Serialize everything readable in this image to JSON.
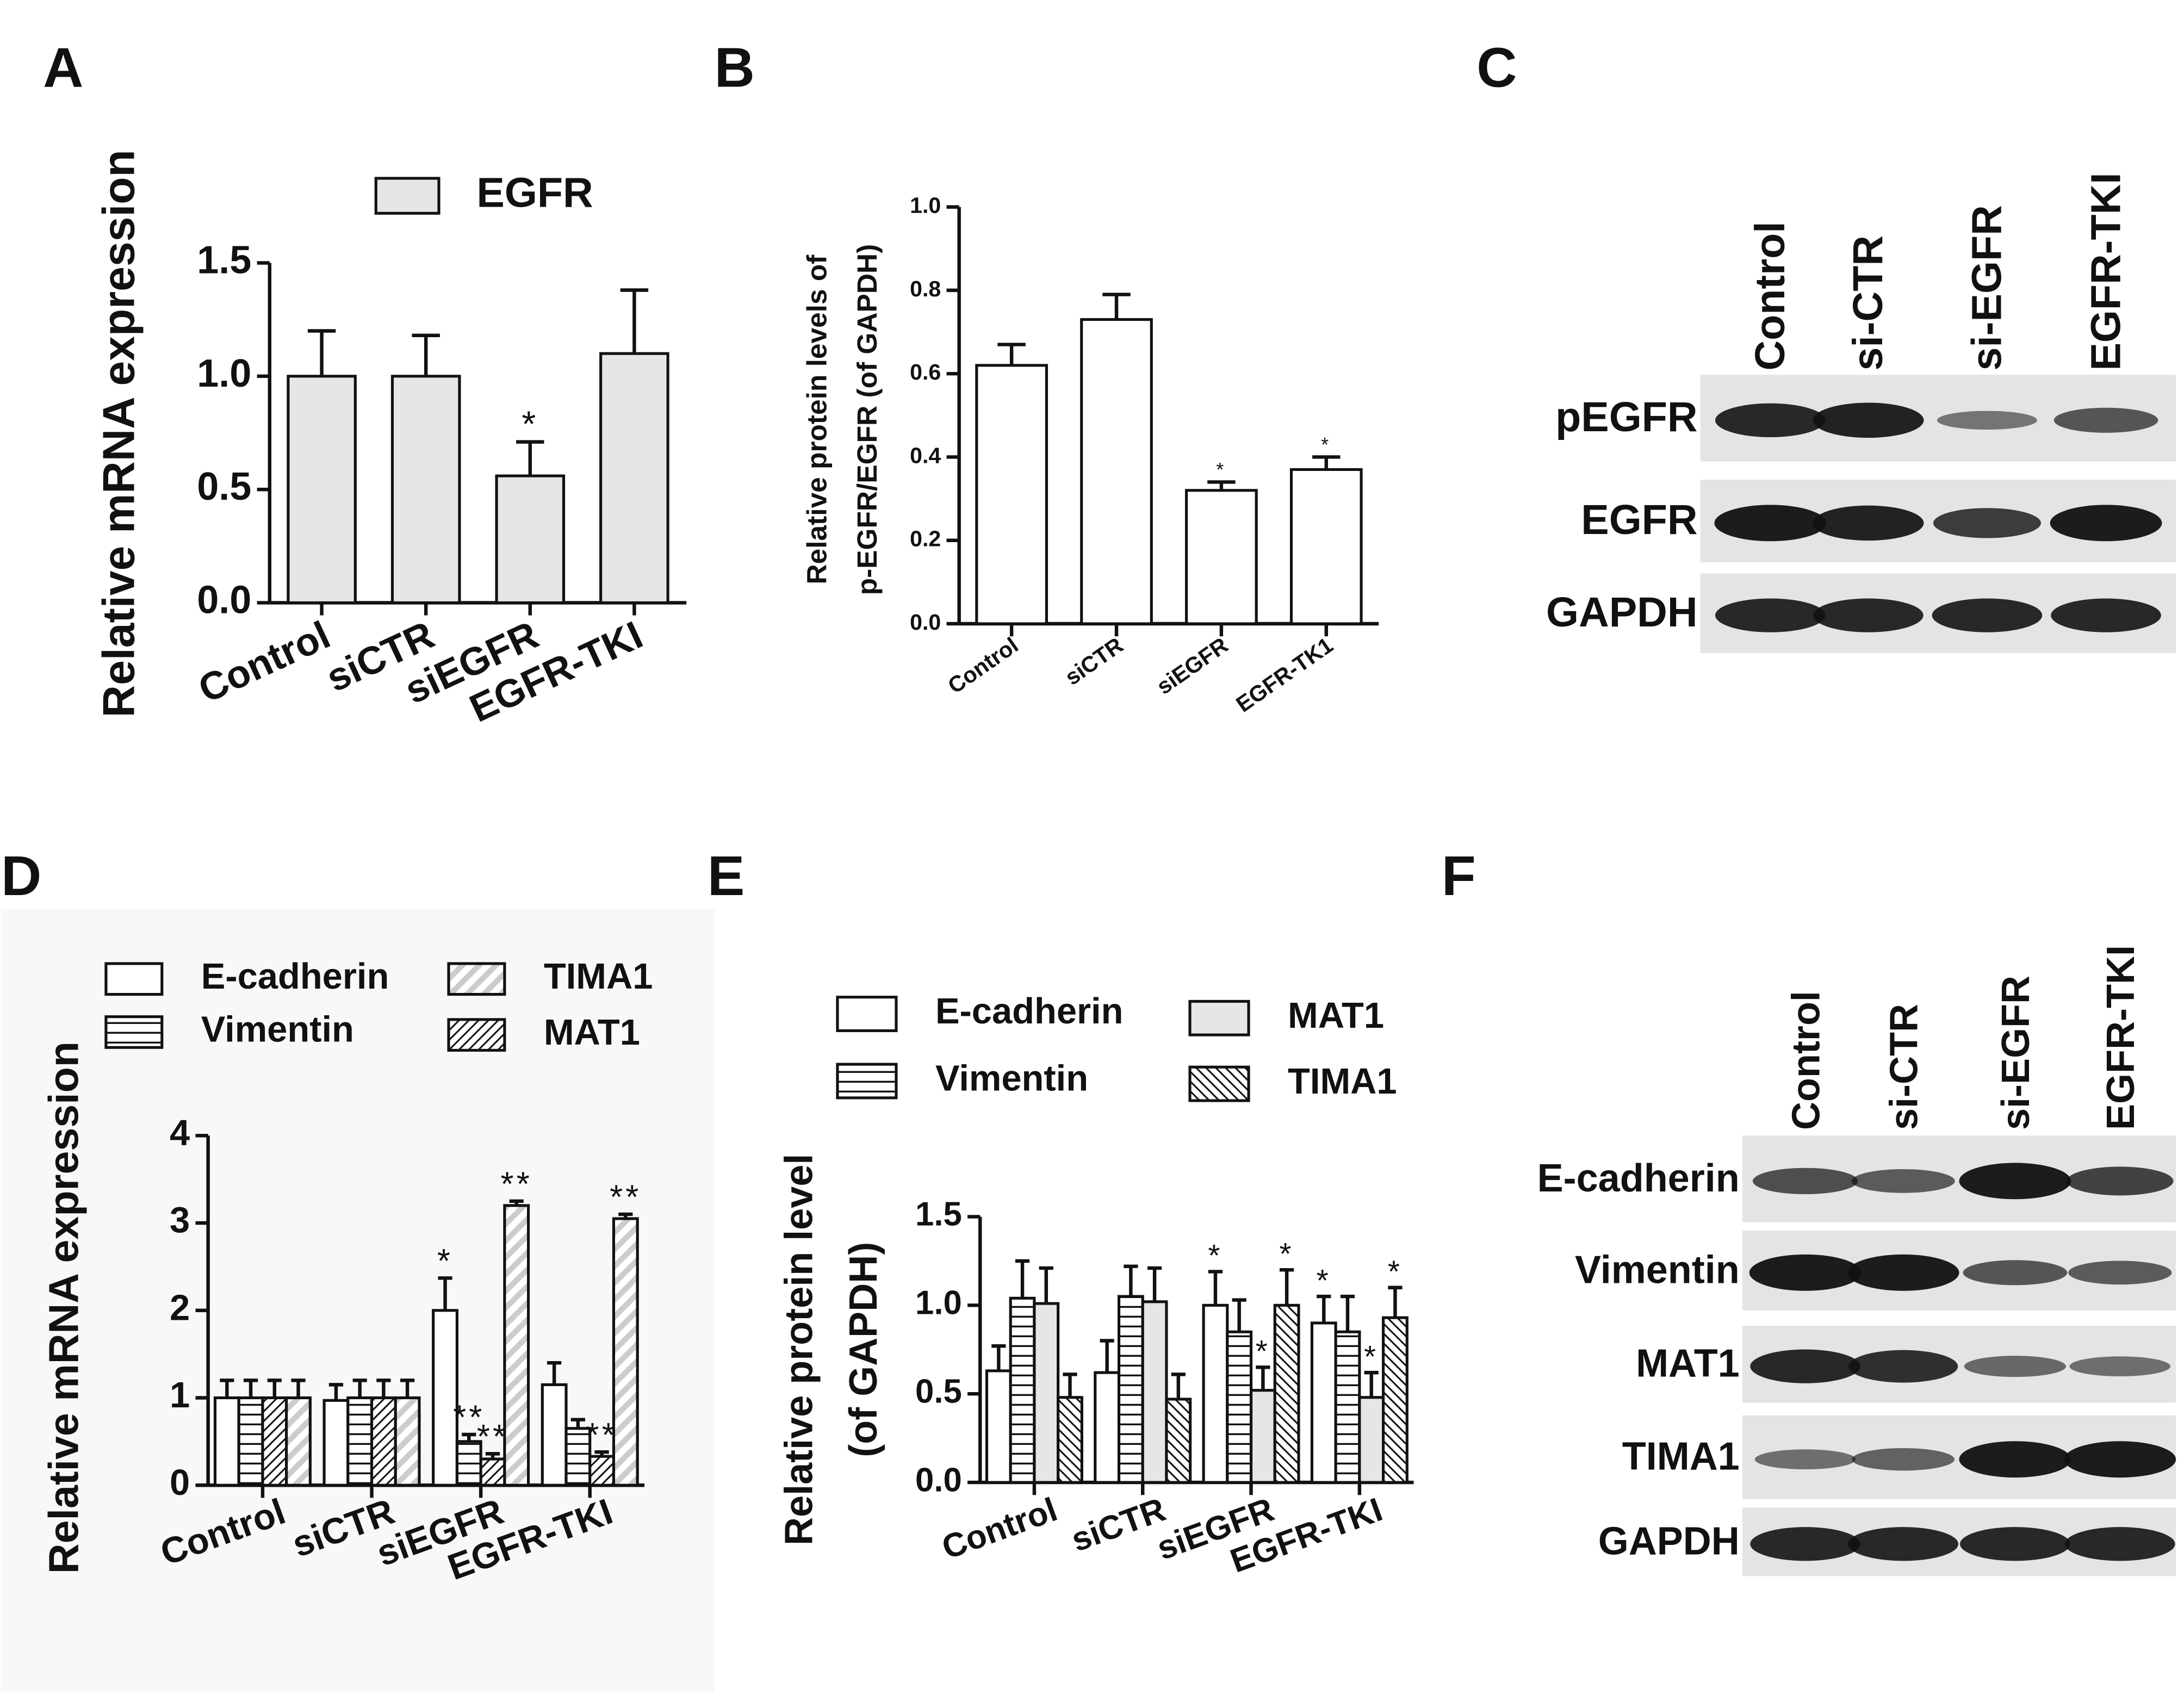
{
  "chart_data": [
    {
      "panel": "A",
      "type": "bar",
      "ylabel": "Relative mRNA expression",
      "categories": [
        "Control",
        "siCTR",
        "siEGFR",
        "EGFR-TKI"
      ],
      "series": [
        {
          "name": "EGFR",
          "color": "#e6e6e6",
          "hatch": "none",
          "values": [
            1.0,
            1.0,
            0.56,
            1.1
          ],
          "errors": [
            0.2,
            0.18,
            0.15,
            0.28
          ],
          "significance": [
            null,
            null,
            "*",
            null
          ]
        }
      ],
      "ylim": [
        0,
        1.5
      ],
      "yticks": [
        {
          "value": 0,
          "label": "0.0"
        },
        0.5,
        {
          "value": 1,
          "label": "1.0"
        },
        1.5
      ]
    },
    {
      "panel": "B",
      "type": "bar",
      "ylabel": [
        "Relative protein levels of",
        "p-EGFR/EGFR (of GAPDH)"
      ],
      "categories": [
        "Control",
        "siCTR",
        "siEGFR",
        "EGFR-TK1"
      ],
      "values": [
        0.62,
        0.73,
        0.32,
        0.37
      ],
      "errors": [
        0.05,
        0.06,
        0.02,
        0.03
      ],
      "significance": [
        null,
        null,
        "*",
        "*"
      ],
      "color": "#ffffff",
      "ylim": [
        0,
        1.0
      ],
      "yticks": [
        {
          "value": 0,
          "label": "0.0"
        },
        0.2,
        0.4,
        0.6,
        0.8,
        {
          "value": 1,
          "label": "1.0"
        }
      ]
    },
    {
      "panel": "D",
      "type": "bar",
      "ylabel": "Relative mRNA expression",
      "categories": [
        "Control",
        "siCTR",
        "siEGFR",
        "EGFR-TKI"
      ],
      "series": [
        {
          "name": "E-cadherin",
          "color": "#ffffff",
          "hatch": "none",
          "values": [
            1.0,
            0.97,
            2.0,
            1.15
          ],
          "errors": [
            0.2,
            0.18,
            0.37,
            0.25
          ],
          "significance": [
            null,
            null,
            "*",
            null
          ]
        },
        {
          "name": "Vimentin",
          "color": "#ffffff",
          "hatch": "hlines",
          "values": [
            1.0,
            1.0,
            0.5,
            0.65
          ],
          "errors": [
            0.2,
            0.2,
            0.08,
            0.1
          ],
          "significance": [
            null,
            null,
            "**",
            null
          ]
        },
        {
          "name": "MAT1",
          "color": "#ffffff",
          "hatch": "diagonal",
          "values": [
            1.0,
            1.0,
            0.3,
            0.33
          ],
          "errors": [
            0.2,
            0.2,
            0.06,
            0.05
          ],
          "significance": [
            null,
            null,
            "**",
            "**"
          ]
        },
        {
          "name": "TIMA1",
          "color": "#cccccc",
          "hatch": "wide-diagonal",
          "values": [
            1.0,
            1.0,
            3.2,
            3.05
          ],
          "errors": [
            0.2,
            0.2,
            0.05,
            0.05
          ],
          "significance": [
            null,
            null,
            "**",
            "**"
          ]
        }
      ],
      "ylim": [
        0,
        4
      ],
      "yticks": [
        0,
        1,
        2,
        3,
        4
      ]
    },
    {
      "panel": "E",
      "type": "bar",
      "ylabel": [
        "Relative protein level",
        "(of GAPDH)"
      ],
      "categories": [
        "Control",
        "siCTR",
        "siEGFR",
        "EGFR-TKI"
      ],
      "series": [
        {
          "name": "E-cadherin",
          "color": "#ffffff",
          "hatch": "none",
          "values": [
            0.63,
            0.62,
            1.0,
            0.9
          ],
          "errors": [
            0.14,
            0.18,
            0.19,
            0.15
          ],
          "significance": [
            null,
            null,
            "*",
            "*"
          ]
        },
        {
          "name": "Vimentin",
          "color": "#ffffff",
          "hatch": "hlines",
          "values": [
            1.04,
            1.05,
            0.85,
            0.85
          ],
          "errors": [
            0.21,
            0.17,
            0.18,
            0.2
          ],
          "significance": [
            null,
            null,
            null,
            null
          ]
        },
        {
          "name": "MAT1",
          "color": "#e6e6e6",
          "hatch": "none",
          "values": [
            1.01,
            1.02,
            0.52,
            0.48
          ],
          "errors": [
            0.2,
            0.19,
            0.13,
            0.14
          ],
          "significance": [
            null,
            null,
            "*",
            "*"
          ]
        },
        {
          "name": "TIMA1",
          "color": "#ffffff",
          "hatch": "backdiagonal",
          "values": [
            0.48,
            0.47,
            1.0,
            0.93
          ],
          "errors": [
            0.13,
            0.14,
            0.2,
            0.17
          ],
          "significance": [
            null,
            null,
            "*",
            "*"
          ]
        }
      ],
      "ylim": [
        0,
        1.5
      ],
      "yticks": [
        {
          "value": 0,
          "label": "0.0"
        },
        0.5,
        {
          "value": 1,
          "label": "1.0"
        },
        1.5
      ]
    }
  ],
  "blots": [
    {
      "panel": "C",
      "lanes": [
        "Control",
        "si-CTR",
        "si-EGFR",
        "EGFR-TKI"
      ],
      "rows": [
        "pEGFR",
        "EGFR",
        "GAPDH"
      ]
    },
    {
      "panel": "F",
      "lanes": [
        "Control",
        "si-CTR",
        "si-EGFR",
        "EGFR-TKI"
      ],
      "rows": [
        "E-cadherin",
        "Vimentin",
        "MAT1",
        "TIMA1",
        "GAPDH"
      ]
    }
  ]
}
